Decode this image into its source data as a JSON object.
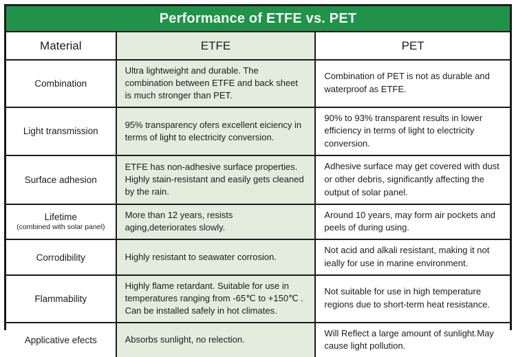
{
  "title": "Performance of ETFE vs. PET",
  "colors": {
    "header_green": "#21924A",
    "etfe_column_green": "#E4ECDE",
    "border_black": "#1A1A1A",
    "title_text": "#F3FAF3"
  },
  "columns": [
    "Material",
    "ETFE",
    "PET"
  ],
  "rows": [
    {
      "material": "Combination",
      "sub": "",
      "etfe": "Ultra lightweight and durable. The combination between ETFE and back sheet is much stronger than PET.",
      "pet": "Combination of PET is not as durable and waterproof as ETFE."
    },
    {
      "material": "Light transmission",
      "sub": "",
      "etfe": "95% transparency ofers excellent eiciency in terms of light to electricity conversion.",
      "pet": "90% to 93% transparent results in lower efficiency in terms of light to electricity conversion."
    },
    {
      "material": "Surface adhesion",
      "sub": "",
      "etfe": "ETFE has non-adhesive surface properties. Highly stain-resistant and easily gets cleaned by the rain.",
      "pet": "Adhesive surface may get covered with dust or other debris, significantly affecting the output of solar panel."
    },
    {
      "material": "Lifetime",
      "sub": "(combined with solar panel)",
      "etfe": "More than 12 years, resists aging,deteriorates slowly.",
      "pet": "Around 10 years, may form air pockets and peels of during using."
    },
    {
      "material": "Corrodibility",
      "sub": "",
      "etfe": "Highly resistant to seawater corrosion.",
      "pet": "Not acid and alkali resistant, making it not ieally for use in marine environment."
    },
    {
      "material": "Flammability",
      "sub": "",
      "etfe": "Highly flame retardant. Suitable for use in temperatures ranging from -65℃ to +150℃ . Can be installed safely in hot climates.",
      "pet": "Not suitable for use in high temperature regions due to short-term heat resistance."
    },
    {
      "material": "Applicative efects",
      "sub": "",
      "etfe": "Absorbs sunlight, no relection.",
      "pet": "Will Reflect a large amount of sunlight.May cause light pollution."
    }
  ]
}
